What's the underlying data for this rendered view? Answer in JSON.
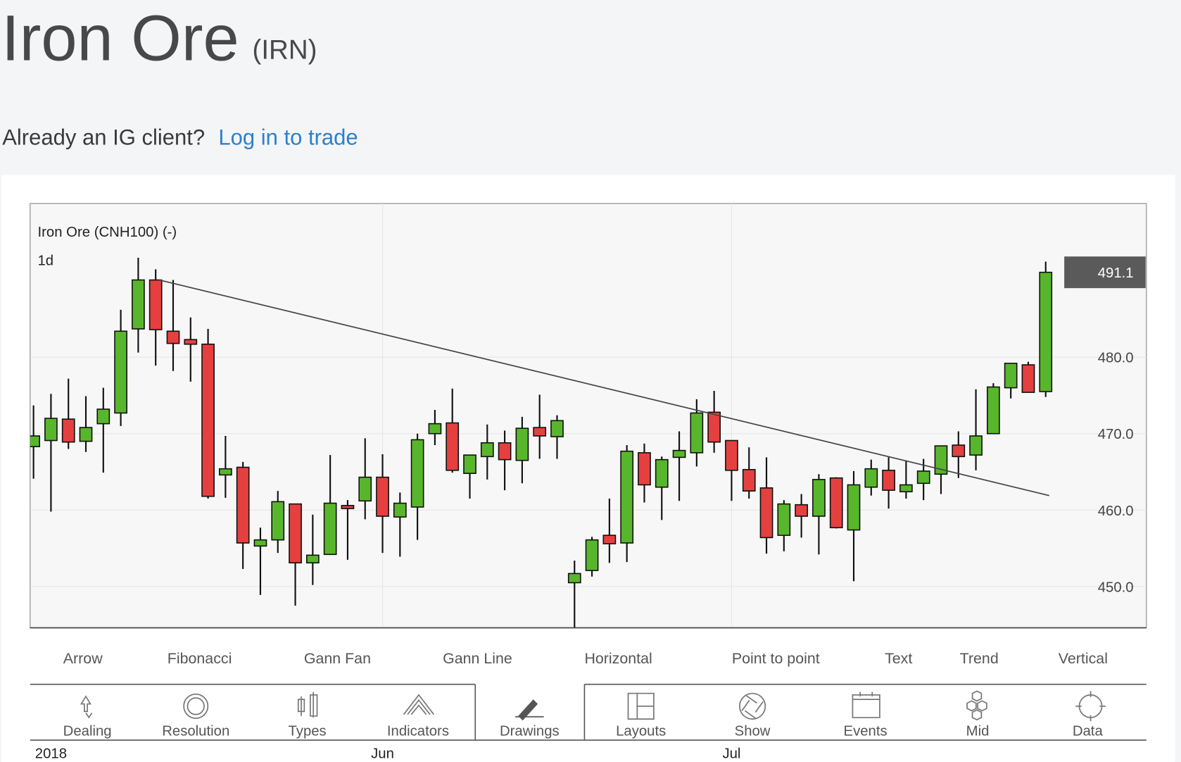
{
  "header": {
    "title": "Iron Ore",
    "ticker": "(IRN)",
    "prompt": "Already an IG client?",
    "login_link": "Log in to trade"
  },
  "chart_data": {
    "type": "candlestick",
    "title": "Iron Ore (CNH100) (-)",
    "interval": "1d",
    "categories": [
      null,
      "2018",
      null,
      null,
      null,
      null,
      null,
      null,
      null,
      null,
      null,
      null,
      null,
      null,
      null,
      null,
      null,
      null,
      null,
      null,
      "Jun",
      null,
      null,
      null,
      null,
      null,
      null,
      null,
      null,
      null,
      null,
      null,
      null,
      null,
      null,
      null,
      null,
      null,
      null,
      null,
      "Jul",
      null,
      null,
      null,
      null,
      null,
      null,
      null,
      null,
      null,
      null,
      null,
      null,
      null,
      null,
      null,
      null,
      null,
      null
    ],
    "open": [
      468.3,
      469.1,
      471.9,
      469.0,
      471.3,
      472.7,
      483.7,
      490.1,
      483.4,
      482.3,
      481.7,
      464.6,
      465.6,
      455.3,
      456.1,
      460.8,
      453.1,
      454.2,
      460.6,
      461.2,
      464.3,
      459.1,
      460.4,
      470.0,
      471.4,
      464.8,
      467.0,
      468.8,
      466.5,
      470.8,
      469.6,
      450.5,
      452.1,
      456.7,
      455.7,
      467.5,
      463.0,
      466.9,
      467.5,
      472.8,
      469.1,
      465.3,
      462.9,
      456.7,
      460.7,
      459.2,
      464.2,
      457.4,
      463.0,
      465.2,
      462.4,
      463.5,
      464.7,
      468.5,
      467.2,
      470.0,
      476.0,
      479.0,
      475.5
    ],
    "high": [
      473.7,
      475.2,
      477.2,
      474.9,
      476.0,
      486.2,
      493.0,
      491.5,
      490.1,
      485.2,
      483.7,
      469.7,
      466.3,
      457.7,
      462.5,
      460.8,
      459.4,
      467.2,
      461.3,
      469.4,
      467.3,
      462.3,
      470.0,
      473.1,
      475.9,
      467.2,
      471.2,
      470.4,
      472.2,
      475.1,
      472.4,
      453.4,
      456.5,
      461.5,
      468.5,
      468.7,
      467.0,
      470.3,
      474.5,
      475.6,
      469.1,
      468.2,
      466.9,
      461.3,
      462.1,
      464.7,
      464.3,
      465.1,
      466.6,
      466.9,
      466.5,
      466.7,
      468.4,
      470.3,
      475.8,
      476.6,
      479.2,
      479.4,
      492.5
    ],
    "low": [
      464.1,
      459.8,
      468.0,
      467.6,
      464.9,
      471.0,
      480.6,
      478.9,
      478.2,
      476.8,
      461.5,
      461.6,
      452.3,
      448.9,
      454.4,
      447.5,
      450.2,
      454.2,
      453.5,
      458.8,
      454.4,
      453.9,
      456.1,
      468.5,
      464.9,
      461.5,
      464.0,
      462.6,
      463.5,
      466.7,
      466.7,
      444.6,
      451.3,
      453.1,
      453.2,
      461.0,
      458.7,
      461.2,
      465.7,
      467.5,
      461.2,
      461.5,
      454.3,
      454.6,
      456.4,
      454.2,
      457.6,
      450.7,
      461.9,
      460.2,
      461.5,
      461.3,
      462.1,
      464.2,
      465.2,
      470.0,
      474.6,
      475.4,
      474.8
    ],
    "close": [
      469.7,
      472.0,
      468.9,
      470.8,
      473.2,
      483.4,
      490.1,
      483.6,
      481.8,
      481.7,
      461.8,
      465.4,
      455.7,
      456.1,
      461.1,
      453.1,
      454.1,
      460.9,
      460.2,
      464.3,
      459.2,
      460.9,
      469.2,
      471.3,
      465.2,
      467.2,
      468.8,
      466.6,
      470.7,
      469.7,
      471.7,
      451.7,
      456.1,
      455.6,
      467.7,
      463.3,
      466.6,
      467.8,
      472.7,
      468.9,
      465.2,
      462.5,
      456.4,
      460.8,
      459.2,
      464.0,
      457.7,
      463.3,
      465.4,
      462.6,
      463.3,
      465.1,
      468.4,
      467.0,
      469.7,
      476.1,
      479.2,
      475.4,
      491.1
    ],
    "up_color": "#58b62c",
    "down_color": "#e5403f",
    "ylim": [
      444.6,
      500.1
    ],
    "yticks": [
      {
        "value": 450,
        "label": "450.0"
      },
      {
        "value": 460,
        "label": "460.0"
      },
      {
        "value": 470,
        "label": "470.0"
      },
      {
        "value": 480,
        "label": "480.0"
      }
    ],
    "grid": true,
    "last_price": 491.1,
    "trend_line": {
      "x": [
        7.2,
        58.2
      ],
      "values": [
        490.1,
        461.9
      ]
    }
  },
  "drawing_tools": [
    "Arrow",
    "Fibonacci",
    "Gann Fan",
    "Gann Line",
    "Horizontal",
    "Point to point",
    "Text",
    "Trend",
    "Vertical"
  ],
  "toolbar": {
    "items": [
      "Dealing",
      "Resolution",
      "Types",
      "Indicators",
      "Drawings",
      "Layouts",
      "Show",
      "Events",
      "Mid",
      "Data"
    ],
    "selected_index": 4
  }
}
